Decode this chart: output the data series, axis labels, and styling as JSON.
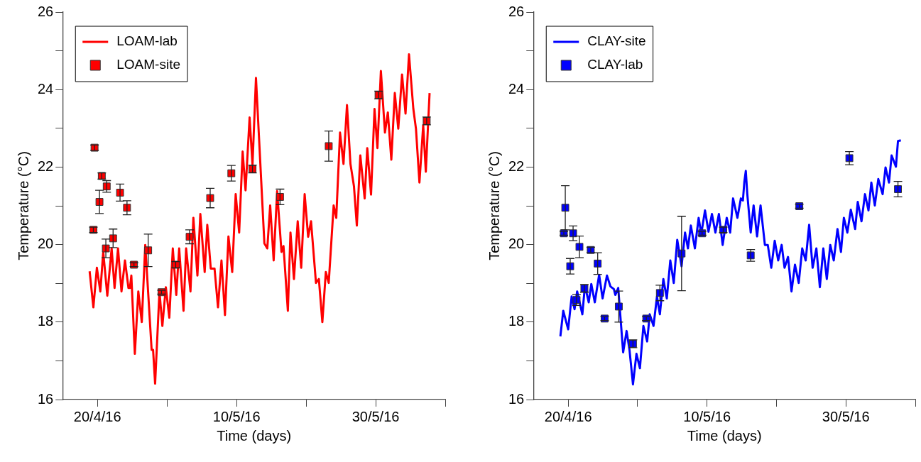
{
  "chart_data": [
    {
      "type": "line",
      "xlabel": "Time (days)",
      "ylabel": "Temperature (°C)",
      "xlim": [
        "--04-15",
        "--06-09"
      ],
      "xticks": [
        {
          "value": "--04-20",
          "label": "20/4/16"
        },
        {
          "value": "--04-30",
          "label": null
        },
        {
          "value": "--05-10",
          "label": "10/5/16"
        },
        {
          "value": "--05-20",
          "label": null
        },
        {
          "value": "--05-30",
          "label": "30/5/16"
        },
        {
          "value": "--06-09",
          "label": null
        }
      ],
      "ylim": [
        16,
        26
      ],
      "yticks": [
        16,
        {
          "value": 17,
          "label": null
        },
        18,
        {
          "value": 19,
          "label": null
        },
        20,
        {
          "value": 21,
          "label": null
        },
        22,
        {
          "value": 23,
          "label": null
        },
        24,
        {
          "value": 25,
          "label": null
        },
        26
      ],
      "legend": "top left",
      "series": [
        {
          "name": "LOAM-lab",
          "type": "line",
          "color": "#ff0000",
          "marker": "none",
          "x": [
            "--04-18T21:00",
            "--04-19T10:00",
            "--04-19T22:00",
            "--04-20T10:00",
            "--04-20T20:00",
            "--04-21T10:00",
            "--04-22T01:00",
            "--04-22T11:00",
            "--04-22T23:00",
            "--04-23T11:00",
            "--04-23T23:00",
            "--04-24T11:00",
            "--04-24T16:00",
            "--04-24T21:00",
            "--04-25T09:00",
            "--04-25T21:00",
            "--04-26T09:00",
            "--04-26T21:00",
            "--04-27T19:00",
            "--04-28T00:00",
            "--04-28T07:00",
            "--04-28T22:00",
            "--04-29T08:00",
            "--04-29T20:00",
            "--04-30T08:00",
            "--04-30T20:00",
            "--05-01T08:00",
            "--05-01T18:00",
            "--05-02T09:00",
            "--05-02T18:00",
            "--05-03T09:00",
            "--05-03T19:00",
            "--05-04T09:00",
            "--05-04T19:00",
            "--05-05T10:00",
            "--05-05T19:00",
            "--05-06T07:00",
            "--05-06T20:00",
            "--05-07T08:00",
            "--05-07T20:00",
            "--05-08T08:00",
            "--05-08T20:00",
            "--05-09T09:00",
            "--05-09T21:00",
            "--05-10T09:00",
            "--05-10T21:00",
            "--05-11T07:00",
            "--05-11T21:00",
            "--05-12T07:00",
            "--05-12T19:00",
            "--05-13T12:00",
            "--05-14T00:00",
            "--05-14T10:00",
            "--05-14T20:00",
            "--05-15T08:00",
            "--05-15T20:00",
            "--05-16T11:00",
            "--05-16T18:00",
            "--05-17T09:00",
            "--05-17T18:00",
            "--05-18T06:00",
            "--05-18T19:00",
            "--05-19T07:00",
            "--05-19T19:00",
            "--05-20T07:00",
            "--05-20T17:00",
            "--05-21T10:00",
            "--05-21T20:00",
            "--05-22T08:00",
            "--05-22T20:00",
            "--05-23T06:00",
            "--05-23T23:00",
            "--05-24T08:00",
            "--05-24T21:00",
            "--05-25T09:00",
            "--05-25T21:00",
            "--05-26T09:00",
            "--05-26T21:00",
            "--05-27T07:00",
            "--05-27T19:00",
            "--05-28T10:00",
            "--05-28T19:00",
            "--05-29T08:00",
            "--05-29T20:00",
            "--05-30T06:00",
            "--05-30T18:00",
            "--05-31T08:00",
            "--05-31T18:00",
            "--06-01T06:00",
            "--06-01T18:00",
            "--06-02T06:00",
            "--06-02T19:00",
            "--06-03T07:00",
            "--06-03T19:00",
            "--06-04T10:00",
            "--06-04T19:00",
            "--06-05T07:00",
            "--06-05T20:00",
            "--06-06T05:00",
            "--06-06T18:00"
          ],
          "values": [
            19.31,
            18.38,
            19.4,
            18.79,
            19.81,
            18.68,
            19.9,
            18.88,
            19.9,
            18.79,
            19.59,
            18.88,
            18.88,
            19.2,
            17.18,
            18.79,
            18.0,
            19.99,
            17.28,
            17.28,
            16.41,
            18.79,
            17.9,
            18.9,
            18.11,
            19.9,
            18.7,
            19.9,
            18.29,
            19.9,
            18.79,
            20.69,
            19.2,
            20.79,
            19.29,
            20.51,
            19.38,
            19.38,
            18.38,
            19.59,
            18.18,
            20.21,
            19.29,
            21.3,
            20.31,
            22.4,
            21.4,
            23.28,
            22.06,
            24.3,
            21.8,
            20.03,
            19.9,
            21.01,
            19.59,
            21.38,
            19.81,
            19.96,
            18.29,
            20.31,
            19.11,
            20.6,
            19.4,
            21.3,
            20.2,
            20.6,
            19.01,
            19.11,
            18.0,
            19.29,
            19.01,
            21.01,
            20.69,
            22.89,
            22.08,
            23.6,
            22.08,
            21.51,
            20.49,
            22.3,
            21.19,
            22.49,
            21.29,
            23.5,
            22.49,
            24.48,
            22.89,
            23.41,
            22.19,
            23.91,
            22.99,
            24.39,
            23.38,
            24.91,
            23.5,
            22.99,
            21.6,
            23.08,
            21.88,
            23.91
          ]
        },
        {
          "name": "LOAM-site",
          "type": "scatter",
          "color": "#ff0000",
          "marker": "square",
          "x": [
            "--04-19T10:00",
            "--04-19T14:00",
            "--04-20T07:00",
            "--04-20T15:00",
            "--04-21T05:00",
            "--04-21T08:00",
            "--04-22T06:00",
            "--04-23T06:00",
            "--04-24T06:00",
            "--04-25T06:00",
            "--04-27T07:00",
            "--04-29T05:00",
            "--05-01T06:00",
            "--05-03T06:00",
            "--05-06T05:00",
            "--05-09T06:00",
            "--05-12T07:00",
            "--05-16T06:00",
            "--05-23T06:00",
            "--05-30T10:00",
            "--06-06T08:00"
          ],
          "values": [
            20.38,
            22.5,
            21.1,
            21.77,
            19.9,
            21.5,
            20.16,
            21.34,
            20.95,
            19.48,
            19.85,
            18.77,
            19.48,
            20.2,
            21.2,
            21.84,
            21.95,
            21.23,
            22.54,
            23.86,
            23.19
          ],
          "errors": [
            0.07,
            0.07,
            0.3,
            0.08,
            0.24,
            0.15,
            0.24,
            0.22,
            0.18,
            0.05,
            0.42,
            0.05,
            0.08,
            0.18,
            0.25,
            0.2,
            0.1,
            0.2,
            0.39,
            0.1,
            0.1
          ]
        }
      ]
    },
    {
      "type": "line",
      "xlabel": "Time (days)",
      "ylabel": "Temperature (°C)",
      "xlim": [
        "--04-15",
        "--06-09"
      ],
      "xticks": [
        {
          "value": "--04-20",
          "label": "20/4/16"
        },
        {
          "value": "--04-30",
          "label": null
        },
        {
          "value": "--05-10",
          "label": "10/5/16"
        },
        {
          "value": "--05-20",
          "label": null
        },
        {
          "value": "--05-30",
          "label": "30/5/16"
        },
        {
          "value": "--06-09",
          "label": null
        }
      ],
      "ylim": [
        16,
        26
      ],
      "yticks": [
        16,
        {
          "value": 17,
          "label": null
        },
        18,
        {
          "value": 19,
          "label": null
        },
        20,
        {
          "value": 21,
          "label": null
        },
        22,
        {
          "value": 23,
          "label": null
        },
        24,
        {
          "value": 25,
          "label": null
        },
        26
      ],
      "legend": "top left",
      "series": [
        {
          "name": "CLAY-site",
          "type": "line",
          "color": "#0000ff",
          "marker": "none",
          "x": [
            "--04-18T21:00",
            "--04-19T07:00",
            "--04-20T00:00",
            "--04-20T12:00",
            "--04-20T22:00",
            "--04-21T07:00",
            "--04-22T01:00",
            "--04-22T10:00",
            "--04-22T23:00",
            "--04-23T08:00",
            "--04-23T20:00",
            "--04-24T11:00",
            "--04-24T23:00",
            "--04-25T14:00",
            "--04-26T02:00",
            "--04-26T14:00",
            "--04-26T19:00",
            "--04-27T05:00",
            "--04-27T22:00",
            "--04-28T10:00",
            "--04-28T20:00",
            "--04-29T08:00",
            "--04-29T20:00",
            "--04-30T08:00",
            "--04-30T20:00",
            "--05-01T09:00",
            "--05-01T18:00",
            "--05-02T07:00",
            "--05-02T19:00",
            "--05-03T05:00",
            "--05-03T17:00",
            "--05-04T05:00",
            "--05-04T17:00",
            "--05-05T05:00",
            "--05-05T17:00",
            "--05-06T08:00",
            "--05-06T20:00",
            "--05-07T06:00",
            "--05-07T16:00",
            "--05-08T06:00",
            "--05-08T19:00",
            "--05-09T04:00",
            "--05-09T17:00",
            "--05-10T05:00",
            "--05-10T17:00",
            "--05-11T05:00",
            "--05-11T17:00",
            "--05-12T06:00",
            "--05-12T20:00",
            "--05-13T08:00",
            "--05-13T18:00",
            "--05-14T09:00",
            "--05-14T21:00",
            "--05-15T04:00",
            "--05-15T09:00",
            "--05-15T14:00",
            "--05-15T19:00",
            "--05-16T07:00",
            "--05-16T17:00",
            "--05-17T05:00",
            "--05-17T17:00",
            "--05-18T08:00",
            "--05-18T18:00",
            "--05-19T06:00",
            "--05-19T18:00",
            "--05-20T06:00",
            "--05-20T18:00",
            "--05-21T04:00",
            "--05-21T16:00",
            "--05-22T04:00",
            "--05-22T16:00",
            "--05-23T05:00",
            "--05-23T17:00",
            "--05-24T05:00",
            "--05-24T17:00",
            "--05-25T05:00",
            "--05-25T18:00",
            "--05-26T06:00",
            "--05-26T18:00",
            "--05-27T06:00",
            "--05-27T18:00",
            "--05-28T06:00",
            "--05-28T19:00",
            "--05-29T07:00",
            "--05-29T17:00",
            "--05-30T05:00",
            "--05-30T17:00",
            "--05-31T08:00",
            "--05-31T17:00",
            "--06-01T06:00",
            "--06-01T18:00",
            "--06-02T06:00",
            "--06-02T16:00",
            "--06-03T04:00",
            "--06-03T16:00",
            "--06-04T07:00",
            "--06-04T17:00",
            "--06-05T05:00",
            "--06-05T14:00",
            "--06-06T05:00",
            "--06-06T12:00",
            "--06-06T22:00"
          ],
          "values": [
            17.63,
            18.29,
            17.81,
            18.66,
            18.33,
            18.79,
            18.2,
            18.94,
            18.51,
            18.98,
            18.51,
            19.22,
            18.61,
            19.2,
            18.92,
            18.85,
            18.7,
            18.88,
            17.22,
            17.77,
            17.28,
            16.39,
            17.18,
            16.81,
            17.9,
            17.5,
            18.2,
            17.9,
            18.66,
            18.2,
            19.11,
            18.61,
            19.59,
            19.01,
            20.12,
            19.44,
            20.31,
            19.9,
            20.49,
            19.9,
            20.69,
            20.27,
            20.88,
            20.33,
            20.79,
            20.31,
            20.79,
            19.99,
            20.69,
            20.31,
            21.19,
            20.69,
            21.19,
            21.14,
            21.62,
            21.9,
            21.32,
            20.31,
            21.01,
            20.21,
            21.01,
            19.99,
            19.99,
            19.4,
            20.1,
            19.59,
            19.99,
            19.4,
            19.68,
            18.79,
            19.48,
            19.01,
            19.9,
            19.59,
            20.51,
            19.4,
            19.9,
            18.9,
            19.9,
            19.11,
            19.99,
            19.59,
            20.4,
            19.81,
            20.69,
            20.31,
            20.9,
            20.4,
            21.1,
            20.6,
            21.3,
            20.88,
            21.6,
            21.01,
            21.69,
            21.3,
            21.99,
            21.6,
            22.3,
            22.01,
            22.67,
            22.69
          ]
        },
        {
          "name": "CLAY-lab",
          "type": "scatter",
          "color": "#0000ff",
          "marker": "square",
          "x": [
            "--04-19T09:00",
            "--04-19T14:00",
            "--04-20T07:00",
            "--04-20T17:00",
            "--04-21T05:00",
            "--04-21T15:00",
            "--04-22T08:00",
            "--04-23T06:00",
            "--04-24T06:00",
            "--04-25T06:00",
            "--04-27T07:00",
            "--04-29T08:00",
            "--05-01T06:00",
            "--05-03T05:00",
            "--05-06T08:00",
            "--05-09T07:00",
            "--05-12T08:00",
            "--05-16T07:00",
            "--05-23T07:00",
            "--05-30T12:00",
            "--06-06T12:00"
          ],
          "values": [
            20.29,
            20.95,
            19.44,
            20.29,
            18.57,
            19.94,
            18.87,
            19.86,
            19.51,
            18.09,
            18.4,
            17.44,
            18.09,
            18.75,
            19.77,
            20.29,
            20.38,
            19.72,
            20.99,
            22.23,
            21.43
          ],
          "errors": [
            0.05,
            0.57,
            0.2,
            0.19,
            0.14,
            0.28,
            0.1,
            0.07,
            0.28,
            0.05,
            0.4,
            0.1,
            0.05,
            0.2,
            0.96,
            0.05,
            0.07,
            0.15,
            0.05,
            0.17,
            0.2
          ]
        }
      ]
    }
  ]
}
